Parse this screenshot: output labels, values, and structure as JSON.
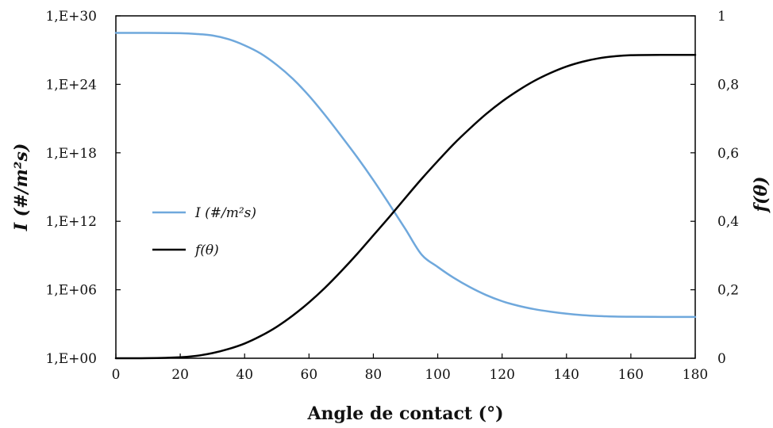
{
  "chart_data": {
    "type": "line",
    "xlabel": "Angle de contact (°)",
    "ylabel_left": "I (#/m²s)",
    "ylabel_right": "f(θ)",
    "x_ticks": [
      "0",
      "20",
      "40",
      "60",
      "80",
      "100",
      "120",
      "140",
      "160",
      "180"
    ],
    "xlim": [
      0,
      180
    ],
    "y_left_ticks": [
      "1,E+00",
      "1,E+06",
      "1,E+12",
      "1,E+18",
      "1,E+24",
      "1,E+30"
    ],
    "y_left_scale": "log",
    "y_left_lim_exponent": [
      0,
      30
    ],
    "y_right_ticks": [
      "0",
      "0,2",
      "0,4",
      "0,6",
      "0,8",
      "1"
    ],
    "y_right_lim": [
      0,
      1
    ],
    "grid": false,
    "legend_placement": "center-left",
    "series": [
      {
        "name": "I (#/m²s)",
        "axis": "left",
        "color": "#6fa8dc",
        "x": [
          0,
          10,
          20,
          25,
          30,
          35,
          40,
          45,
          50,
          55,
          60,
          65,
          70,
          75,
          80,
          85,
          90,
          95,
          100,
          105,
          110,
          115,
          120,
          125,
          130,
          135,
          140,
          145,
          150,
          155,
          160,
          170,
          180
        ],
        "y": [
          3.2e+28,
          3.2e+28,
          3e+28,
          2.6e+28,
          1.9e+28,
          9e+27,
          2.6e+27,
          5e+26,
          5e+25,
          3e+24,
          1e+23,
          2e+21,
          3e+19,
          4e+17,
          4000000000000000.0,
          30000000000000.0,
          200000000000.0,
          1200000000.0,
          100000000.0,
          11000000.0,
          1700000.0,
          350000.0,
          100000.0,
          40000.0,
          20000.0,
          12000.0,
          8000.0,
          6000.0,
          5000.0,
          4500.0,
          4300.0,
          4200.0,
          4200.0
        ]
      },
      {
        "name": "f(θ)",
        "axis": "right",
        "color": "#000000",
        "x": [
          0,
          10,
          20,
          25,
          30,
          35,
          40,
          45,
          50,
          55,
          60,
          65,
          70,
          75,
          80,
          85,
          90,
          95,
          100,
          105,
          110,
          115,
          120,
          125,
          130,
          135,
          140,
          145,
          150,
          155,
          160,
          170,
          180
        ],
        "y": [
          0.0,
          0.0002,
          0.003,
          0.007,
          0.015,
          0.027,
          0.043,
          0.065,
          0.092,
          0.125,
          0.163,
          0.206,
          0.254,
          0.305,
          0.359,
          0.413,
          0.469,
          0.524,
          0.576,
          0.626,
          0.671,
          0.713,
          0.75,
          0.782,
          0.81,
          0.833,
          0.852,
          0.866,
          0.876,
          0.882,
          0.885,
          0.886,
          0.886
        ]
      }
    ]
  }
}
